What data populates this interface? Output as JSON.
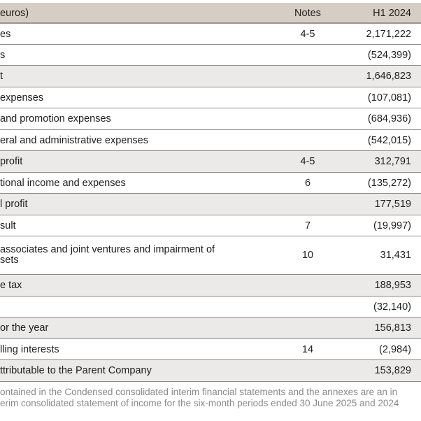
{
  "header": {
    "label": "euros)",
    "notes": "Notes",
    "period": "H1 2024"
  },
  "rows": [
    {
      "label": "es",
      "note": "4-5",
      "value": "2,171,222",
      "shaded": false
    },
    {
      "label": "s",
      "note": "",
      "value": "(524,399)",
      "shaded": false
    },
    {
      "label": "t",
      "note": "",
      "value": "1,646,823",
      "shaded": true
    },
    {
      "label": " expenses",
      "note": "",
      "value": "(107,081)",
      "shaded": false
    },
    {
      "label": "and promotion expenses",
      "note": "",
      "value": "(684,936)",
      "shaded": false
    },
    {
      "label": "eral and administrative expenses",
      "note": "",
      "value": "(542,015)",
      "shaded": false
    },
    {
      "label": "profit",
      "note": "4-5",
      "value": "312,791",
      "shaded": true
    },
    {
      "label": "tional income and expenses",
      "note": "6",
      "value": "(135,272)",
      "shaded": false
    },
    {
      "label": "l profit",
      "note": "",
      "value": "177,519",
      "shaded": true
    },
    {
      "label": "sult",
      "note": "7",
      "value": "(19,997)",
      "shaded": false
    },
    {
      "label": " associates and joint ventures and impairment of",
      "label2": "sets",
      "note": "10",
      "value": "31,431",
      "shaded": false
    },
    {
      "label": "e tax",
      "note": "",
      "value": "188,953",
      "shaded": true
    },
    {
      "label": "",
      "note": "",
      "value": "(32,140)",
      "shaded": false
    },
    {
      "label": "or the year",
      "note": "",
      "value": "156,813",
      "shaded": true
    },
    {
      "label": "lling interests",
      "note": "14",
      "value": "(2,984)",
      "shaded": false
    },
    {
      "label": "ttributable to the Parent Company",
      "note": "",
      "value": "153,829",
      "shaded": true
    }
  ],
  "footnote": {
    "line1": "ontained in the Condensed consolidated interim financial statements and the annexes are an in",
    "line2": "erim consolidated statement of income for the six-month periods ended 30 June 2025 and 2024"
  }
}
